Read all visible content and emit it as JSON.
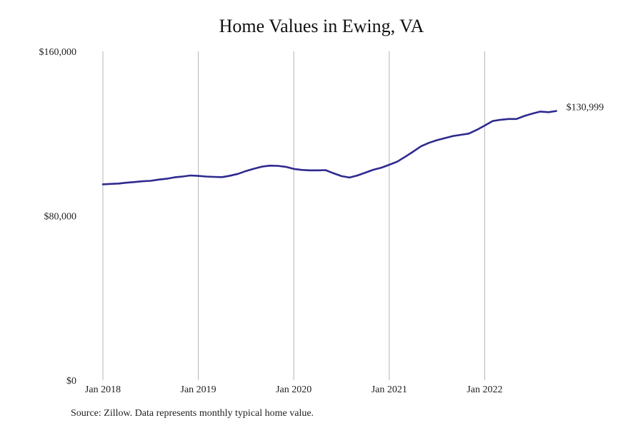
{
  "chart_data": {
    "type": "line",
    "title": "Home Values in Ewing, VA",
    "xlabel": "",
    "ylabel": "",
    "ylim": [
      0,
      160000
    ],
    "y_ticks": [
      {
        "value": 0,
        "label": "$0"
      },
      {
        "value": 80000,
        "label": "$80,000"
      },
      {
        "value": 160000,
        "label": "$160,000"
      }
    ],
    "x_ticks": [
      {
        "value": "2018-01",
        "label": "Jan 2018"
      },
      {
        "value": "2019-01",
        "label": "Jan 2019"
      },
      {
        "value": "2020-01",
        "label": "Jan 2020"
      },
      {
        "value": "2021-01",
        "label": "Jan 2021"
      },
      {
        "value": "2022-01",
        "label": "Jan 2022"
      }
    ],
    "grid": "vertical",
    "series_color": "#2e2a8f",
    "series": [
      {
        "name": "",
        "x": [
          "2018-01",
          "2018-02",
          "2018-03",
          "2018-04",
          "2018-05",
          "2018-06",
          "2018-07",
          "2018-08",
          "2018-09",
          "2018-10",
          "2018-11",
          "2018-12",
          "2019-01",
          "2019-02",
          "2019-03",
          "2019-04",
          "2019-05",
          "2019-06",
          "2019-07",
          "2019-08",
          "2019-09",
          "2019-10",
          "2019-11",
          "2019-12",
          "2020-01",
          "2020-02",
          "2020-03",
          "2020-04",
          "2020-05",
          "2020-06",
          "2020-07",
          "2020-08",
          "2020-09",
          "2020-10",
          "2020-11",
          "2020-12",
          "2021-01",
          "2021-02",
          "2021-03",
          "2021-04",
          "2021-05",
          "2021-06",
          "2021-07",
          "2021-08",
          "2021-09",
          "2021-10",
          "2021-11",
          "2021-12",
          "2022-01",
          "2022-02",
          "2022-03",
          "2022-04",
          "2022-05",
          "2022-06",
          "2022-07",
          "2022-08",
          "2022-09",
          "2022-10"
        ],
        "values": [
          95300,
          95500,
          95700,
          96100,
          96400,
          96800,
          97000,
          97600,
          98000,
          98700,
          99100,
          99600,
          99400,
          99100,
          98900,
          98800,
          99500,
          100400,
          101800,
          102900,
          103900,
          104400,
          104300,
          103800,
          102800,
          102300,
          102100,
          102100,
          102200,
          100700,
          99300,
          98600,
          99600,
          101000,
          102400,
          103400,
          104800,
          106300,
          108700,
          111200,
          113800,
          115500,
          116800,
          117800,
          118800,
          119400,
          120000,
          121800,
          123900,
          126100,
          126700,
          127100,
          127100,
          128600,
          129700,
          130700,
          130400,
          130999
        ]
      }
    ],
    "end_label": "$130,999"
  },
  "footer": {
    "source": "Source: Zillow. Data represents monthly typical home value."
  }
}
